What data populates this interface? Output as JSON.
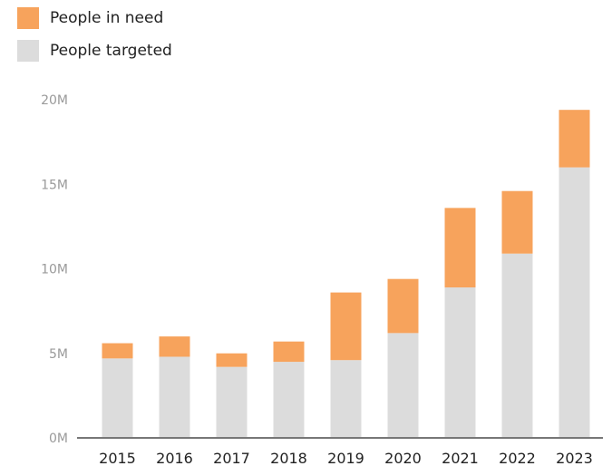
{
  "chart_data": {
    "type": "bar",
    "stacked": true,
    "categories": [
      "2015",
      "2016",
      "2017",
      "2018",
      "2019",
      "2020",
      "2021",
      "2022",
      "2023"
    ],
    "series": [
      {
        "name": "People targeted",
        "color": "#dcdcdc",
        "values": [
          4.7,
          4.8,
          4.2,
          4.5,
          4.6,
          6.2,
          8.9,
          10.9,
          16.0
        ]
      },
      {
        "name": "People in need",
        "color": "#f7a35c",
        "values": [
          0.9,
          1.2,
          0.8,
          1.2,
          4.0,
          3.2,
          4.7,
          3.7,
          3.4
        ]
      }
    ],
    "totals": [
      5.6,
      6.0,
      5.0,
      5.7,
      8.6,
      9.4,
      13.6,
      14.6,
      19.4
    ],
    "ylim": [
      0,
      20
    ],
    "yticks": [
      "0M",
      "5M",
      "10M",
      "15M",
      "20M"
    ],
    "ytick_values": [
      0,
      5,
      10,
      15,
      20
    ],
    "legend_position": "top-left",
    "grid": false
  },
  "legend": {
    "in_need": "People in need",
    "targeted": "People targeted"
  }
}
